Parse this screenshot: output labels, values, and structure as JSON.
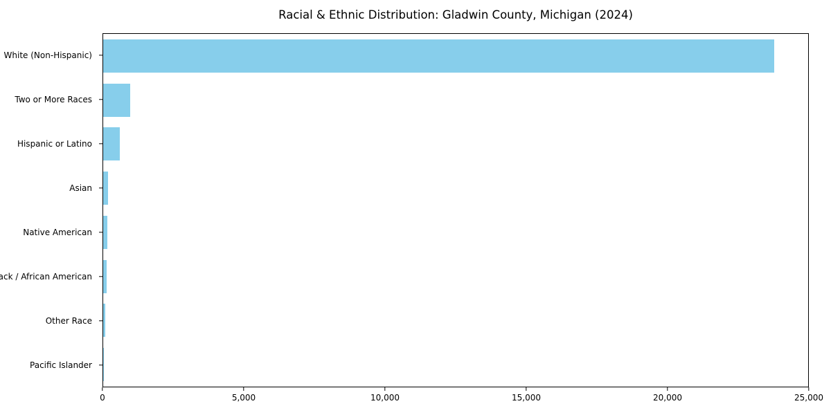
{
  "title": "Racial & Ethnic Distribution: Gladwin County, Michigan (2024)",
  "colors": {
    "bar": "#87CEEB",
    "axis": "#000000",
    "background": "#FFFFFF",
    "text": "#000000"
  },
  "chart_data": {
    "type": "bar",
    "orientation": "horizontal",
    "title": "Racial & Ethnic Distribution: Gladwin County, Michigan (2024)",
    "categories": [
      "White (Non-Hispanic)",
      "Two or More Races",
      "Hispanic or Latino",
      "Asian",
      "Native American",
      "Black / African American",
      "Other Race",
      "Pacific Islander"
    ],
    "values": [
      23800,
      950,
      600,
      160,
      140,
      115,
      75,
      10
    ],
    "xlabel": "",
    "ylabel": "",
    "xlim": [
      0,
      25000
    ],
    "x_ticks": [
      0,
      5000,
      10000,
      15000,
      20000,
      25000
    ],
    "x_tick_labels": [
      "0",
      "5,000",
      "10,000",
      "15,000",
      "20,000",
      "25,000"
    ],
    "grid": false,
    "legend": null,
    "bar_color": "#87CEEB"
  }
}
